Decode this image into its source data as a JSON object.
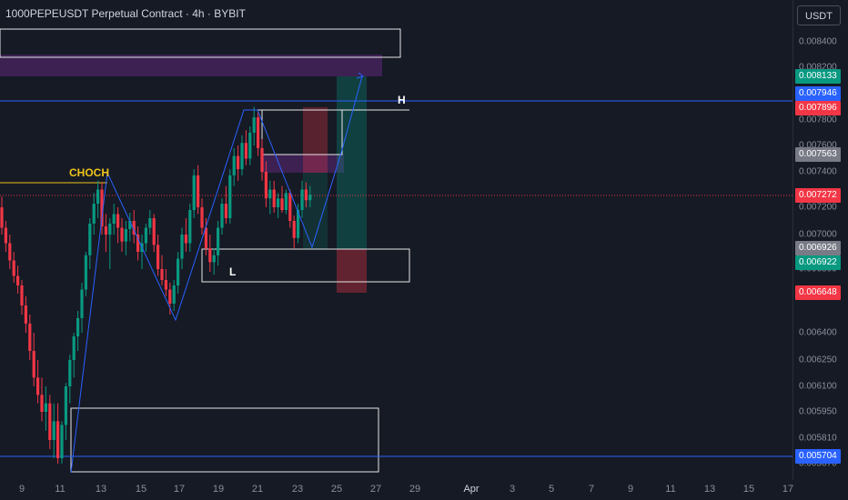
{
  "header": {
    "title": "1000PEPEUSDT Perpetual Contract · 4h · BYBIT",
    "unit_button": "USDT"
  },
  "price_axis": {
    "ticks": [
      "0.008400",
      "0.008200",
      "0.008000",
      "0.007800",
      "0.007600",
      "0.007400",
      "0.007200",
      "0.007000",
      "0.006800",
      "0.006600",
      "0.006400",
      "0.006250",
      "0.006100",
      "0.005950",
      "0.005810",
      "0.005670"
    ],
    "labels": [
      {
        "text": "0.008133",
        "color": "#089981"
      },
      {
        "text": "0.007946",
        "color": "#2962ff"
      },
      {
        "text": "0.007896",
        "color": "#f23645"
      },
      {
        "text": "0.007563",
        "color": "#787b86"
      },
      {
        "text": "0.007272",
        "color": "#f23645"
      },
      {
        "text": "0.006926",
        "color": "#787b86"
      },
      {
        "text": "0.006922",
        "color": "#089981"
      },
      {
        "text": "0.006648",
        "color": "#f23645"
      },
      {
        "text": "0.005704",
        "color": "#2962ff"
      }
    ]
  },
  "time_axis": {
    "ticks": [
      "9",
      "11",
      "13",
      "15",
      "17",
      "19",
      "21",
      "23",
      "25",
      "27",
      "29",
      "Apr",
      "3",
      "5",
      "7",
      "9",
      "11",
      "13",
      "15",
      "17"
    ]
  },
  "annotations": {
    "choch": "CHOCH",
    "high": "H",
    "low": "L"
  },
  "colors": {
    "background": "#161a25",
    "bull": "#089981",
    "bear": "#f23645",
    "line": "#2962ff",
    "choch": "#f0c419"
  },
  "candles": [
    {
      "o": 0.0072,
      "h": 0.00726,
      "l": 0.007,
      "c": 0.00705
    },
    {
      "o": 0.00705,
      "h": 0.0071,
      "l": 0.0069,
      "c": 0.00695
    },
    {
      "o": 0.00695,
      "h": 0.007,
      "l": 0.0068,
      "c": 0.00685
    },
    {
      "o": 0.00685,
      "h": 0.0069,
      "l": 0.0067,
      "c": 0.00675
    },
    {
      "o": 0.00675,
      "h": 0.00682,
      "l": 0.00662,
      "c": 0.00668
    },
    {
      "o": 0.00668,
      "h": 0.00672,
      "l": 0.0065,
      "c": 0.00655
    },
    {
      "o": 0.00655,
      "h": 0.0066,
      "l": 0.0064,
      "c": 0.00645
    },
    {
      "o": 0.00645,
      "h": 0.0065,
      "l": 0.00625,
      "c": 0.0063
    },
    {
      "o": 0.0063,
      "h": 0.0064,
      "l": 0.0061,
      "c": 0.00615
    },
    {
      "o": 0.00615,
      "h": 0.00625,
      "l": 0.006,
      "c": 0.00605
    },
    {
      "o": 0.00605,
      "h": 0.00615,
      "l": 0.0059,
      "c": 0.00595
    },
    {
      "o": 0.00595,
      "h": 0.0061,
      "l": 0.00585,
      "c": 0.006
    },
    {
      "o": 0.006,
      "h": 0.00605,
      "l": 0.00575,
      "c": 0.0058
    },
    {
      "o": 0.0058,
      "h": 0.006,
      "l": 0.0057,
      "c": 0.0059
    },
    {
      "o": 0.0059,
      "h": 0.006,
      "l": 0.00565,
      "c": 0.0057
    },
    {
      "o": 0.0057,
      "h": 0.0059,
      "l": 0.00566,
      "c": 0.00588
    },
    {
      "o": 0.00588,
      "h": 0.00612,
      "l": 0.0058,
      "c": 0.0061
    },
    {
      "o": 0.0061,
      "h": 0.00628,
      "l": 0.006,
      "c": 0.00625
    },
    {
      "o": 0.00625,
      "h": 0.0064,
      "l": 0.00615,
      "c": 0.00638
    },
    {
      "o": 0.00638,
      "h": 0.00652,
      "l": 0.0063,
      "c": 0.00648
    },
    {
      "o": 0.00648,
      "h": 0.0067,
      "l": 0.0064,
      "c": 0.00665
    },
    {
      "o": 0.00665,
      "h": 0.0069,
      "l": 0.0066,
      "c": 0.00688
    },
    {
      "o": 0.00688,
      "h": 0.00712,
      "l": 0.0068,
      "c": 0.00708
    },
    {
      "o": 0.00708,
      "h": 0.00728,
      "l": 0.007,
      "c": 0.00722
    },
    {
      "o": 0.00722,
      "h": 0.00735,
      "l": 0.00712,
      "c": 0.0073
    },
    {
      "o": 0.0073,
      "h": 0.00734,
      "l": 0.007,
      "c": 0.00706
    },
    {
      "o": 0.00706,
      "h": 0.00715,
      "l": 0.0069,
      "c": 0.007
    },
    {
      "o": 0.007,
      "h": 0.00712,
      "l": 0.0068,
      "c": 0.00708
    },
    {
      "o": 0.00708,
      "h": 0.00722,
      "l": 0.007,
      "c": 0.00715
    },
    {
      "o": 0.00715,
      "h": 0.0072,
      "l": 0.00695,
      "c": 0.00705
    },
    {
      "o": 0.00705,
      "h": 0.00712,
      "l": 0.0069,
      "c": 0.00696
    },
    {
      "o": 0.00696,
      "h": 0.0071,
      "l": 0.00688,
      "c": 0.00704
    },
    {
      "o": 0.00704,
      "h": 0.00716,
      "l": 0.00696,
      "c": 0.0071
    },
    {
      "o": 0.0071,
      "h": 0.00718,
      "l": 0.00695,
      "c": 0.007
    },
    {
      "o": 0.007,
      "h": 0.00706,
      "l": 0.00685,
      "c": 0.0069
    },
    {
      "o": 0.0069,
      "h": 0.007,
      "l": 0.0068,
      "c": 0.00695
    },
    {
      "o": 0.00695,
      "h": 0.00708,
      "l": 0.0069,
      "c": 0.00705
    },
    {
      "o": 0.00705,
      "h": 0.00718,
      "l": 0.007,
      "c": 0.00712
    },
    {
      "o": 0.00712,
      "h": 0.00715,
      "l": 0.0069,
      "c": 0.00694
    },
    {
      "o": 0.00694,
      "h": 0.007,
      "l": 0.00675,
      "c": 0.0068
    },
    {
      "o": 0.0068,
      "h": 0.00688,
      "l": 0.00668,
      "c": 0.00672
    },
    {
      "o": 0.00672,
      "h": 0.0068,
      "l": 0.0066,
      "c": 0.00665
    },
    {
      "o": 0.00665,
      "h": 0.0067,
      "l": 0.0065,
      "c": 0.00656
    },
    {
      "o": 0.00656,
      "h": 0.00672,
      "l": 0.00652,
      "c": 0.00668
    },
    {
      "o": 0.00668,
      "h": 0.0069,
      "l": 0.00662,
      "c": 0.00686
    },
    {
      "o": 0.00686,
      "h": 0.00705,
      "l": 0.0068,
      "c": 0.007
    },
    {
      "o": 0.007,
      "h": 0.00712,
      "l": 0.0069,
      "c": 0.00695
    },
    {
      "o": 0.00695,
      "h": 0.00722,
      "l": 0.0069,
      "c": 0.00718
    },
    {
      "o": 0.00718,
      "h": 0.00742,
      "l": 0.00712,
      "c": 0.00738
    },
    {
      "o": 0.00738,
      "h": 0.00745,
      "l": 0.00715,
      "c": 0.0072
    },
    {
      "o": 0.0072,
      "h": 0.00725,
      "l": 0.007,
      "c": 0.00705
    },
    {
      "o": 0.00705,
      "h": 0.00712,
      "l": 0.00688,
      "c": 0.00692
    },
    {
      "o": 0.00692,
      "h": 0.007,
      "l": 0.00678,
      "c": 0.00684
    },
    {
      "o": 0.00684,
      "h": 0.00692,
      "l": 0.00676,
      "c": 0.00688
    },
    {
      "o": 0.00688,
      "h": 0.0071,
      "l": 0.00682,
      "c": 0.00705
    },
    {
      "o": 0.00705,
      "h": 0.00725,
      "l": 0.007,
      "c": 0.00722
    },
    {
      "o": 0.00722,
      "h": 0.00732,
      "l": 0.00708,
      "c": 0.00712
    },
    {
      "o": 0.00712,
      "h": 0.00742,
      "l": 0.00708,
      "c": 0.00738
    },
    {
      "o": 0.00738,
      "h": 0.00758,
      "l": 0.00732,
      "c": 0.00752
    },
    {
      "o": 0.00752,
      "h": 0.0076,
      "l": 0.00735,
      "c": 0.00742
    },
    {
      "o": 0.00742,
      "h": 0.00768,
      "l": 0.00738,
      "c": 0.00762
    },
    {
      "o": 0.00762,
      "h": 0.00772,
      "l": 0.00745,
      "c": 0.0075
    },
    {
      "o": 0.0075,
      "h": 0.00775,
      "l": 0.00745,
      "c": 0.0077
    },
    {
      "o": 0.0077,
      "h": 0.0079,
      "l": 0.0076,
      "c": 0.00782
    },
    {
      "o": 0.00782,
      "h": 0.00786,
      "l": 0.00752,
      "c": 0.00758
    },
    {
      "o": 0.00758,
      "h": 0.00765,
      "l": 0.00735,
      "c": 0.0074
    },
    {
      "o": 0.0074,
      "h": 0.00748,
      "l": 0.0072,
      "c": 0.00725
    },
    {
      "o": 0.00725,
      "h": 0.00735,
      "l": 0.00715,
      "c": 0.0073
    },
    {
      "o": 0.0073,
      "h": 0.00735,
      "l": 0.00716,
      "c": 0.0072
    },
    {
      "o": 0.0072,
      "h": 0.00728,
      "l": 0.00712,
      "c": 0.00725
    },
    {
      "o": 0.00725,
      "h": 0.00732,
      "l": 0.00716,
      "c": 0.00718
    },
    {
      "o": 0.00718,
      "h": 0.0073,
      "l": 0.00715,
      "c": 0.00728
    },
    {
      "o": 0.00728,
      "h": 0.0073,
      "l": 0.00705,
      "c": 0.0071
    },
    {
      "o": 0.0071,
      "h": 0.00714,
      "l": 0.00692,
      "c": 0.00698
    },
    {
      "o": 0.00698,
      "h": 0.00722,
      "l": 0.00695,
      "c": 0.00718
    },
    {
      "o": 0.00718,
      "h": 0.00735,
      "l": 0.00712,
      "c": 0.0073
    },
    {
      "o": 0.0073,
      "h": 0.00734,
      "l": 0.0072,
      "c": 0.00724
    },
    {
      "o": 0.00724,
      "h": 0.00732,
      "l": 0.0072,
      "c": 0.00727
    }
  ]
}
